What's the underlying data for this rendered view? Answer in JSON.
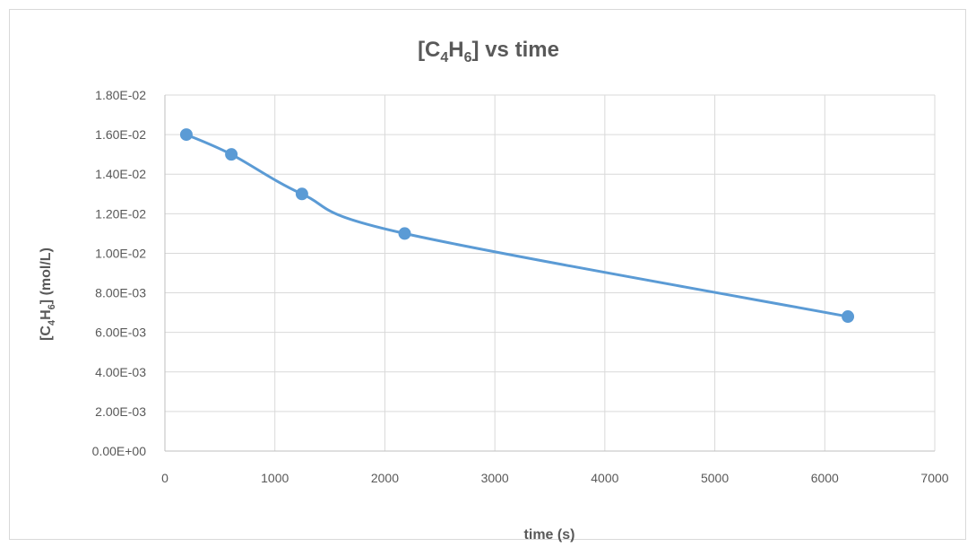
{
  "chart_data": {
    "type": "scatter",
    "title": {
      "prefix": "[C",
      "sub1": "4",
      "mid": "H",
      "sub2": "6",
      "suffix": "] vs time"
    },
    "xlabel": "time (s)",
    "ylabel": {
      "prefix": "[C",
      "sub1": "4",
      "mid": "H",
      "sub2": "6",
      "suffix": "] (mol/L)"
    },
    "xlim": [
      0,
      7000
    ],
    "ylim": [
      0,
      0.018
    ],
    "x_ticks": [
      "0",
      "1000",
      "2000",
      "3000",
      "4000",
      "5000",
      "6000",
      "7000"
    ],
    "y_ticks": [
      "0.00E+00",
      "2.00E-03",
      "4.00E-03",
      "6.00E-03",
      "8.00E-03",
      "1.00E-02",
      "1.20E-02",
      "1.40E-02",
      "1.60E-02",
      "1.80E-02"
    ],
    "grid": "vertical and horizontal major gridlines",
    "line": "smooth",
    "series": [
      {
        "color": "#5b9bd5",
        "x": [
          195,
          604,
          1246,
          2180,
          6210
        ],
        "y": [
          0.016,
          0.015,
          0.013,
          0.011,
          0.0068
        ]
      }
    ]
  }
}
